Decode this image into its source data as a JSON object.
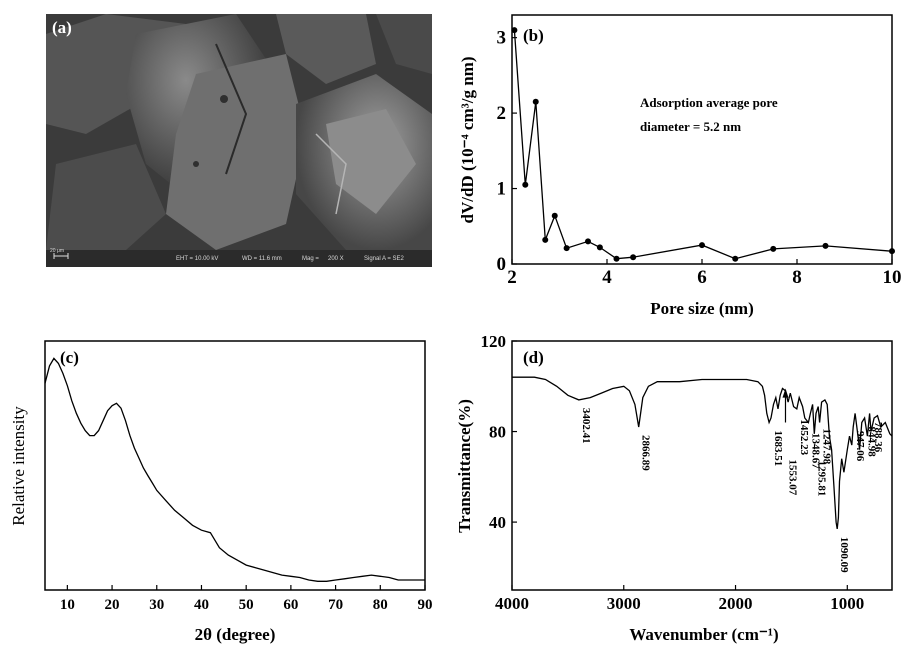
{
  "sem_image": {
    "panel_label": "(a)",
    "scale_bar_label": "20 μm",
    "footer": [
      "EHT = 10.00 kV",
      "WD = 11.6 mm",
      "Mag =",
      "200 X",
      "Signal A = SE2"
    ]
  },
  "chart_data": [
    {
      "panel_label": "(b)",
      "type": "line",
      "xlabel": "Pore size (nm)",
      "ylabel": "dV/dD (10⁻⁴ cm³/g nm)",
      "xlim": [
        2,
        10
      ],
      "ylim": [
        0,
        3.3
      ],
      "xticks": [
        "2",
        "4",
        "6",
        "8",
        "10"
      ],
      "yticks": [
        "0",
        "1",
        "2",
        "3"
      ],
      "annotation": [
        "Adsorption average pore",
        "diameter = 5.2 nm"
      ],
      "grid": false,
      "series": [
        {
          "x": [
            2.05,
            2.28,
            2.5,
            2.7,
            2.9,
            3.15,
            3.6,
            3.85,
            4.2,
            4.55,
            6.0,
            6.7,
            7.5,
            8.6,
            10.0
          ],
          "y": [
            3.1,
            1.05,
            2.15,
            0.32,
            0.64,
            0.21,
            0.3,
            0.22,
            0.07,
            0.09,
            0.25,
            0.07,
            0.2,
            0.24,
            0.17
          ]
        }
      ]
    },
    {
      "panel_label": "(c)",
      "type": "line",
      "xlabel": "2θ (degree)",
      "ylabel": "Relative intensity",
      "xlim": [
        5,
        90
      ],
      "ylim": [
        0,
        1
      ],
      "xticks": [
        "10",
        "20",
        "30",
        "40",
        "50",
        "60",
        "70",
        "80",
        "90"
      ],
      "yticks": [],
      "grid": false,
      "series": [
        {
          "x": [
            5,
            6,
            7,
            8,
            9,
            10,
            11,
            12,
            13,
            14,
            15,
            16,
            17,
            18,
            19,
            20,
            21,
            22,
            23,
            24,
            25,
            26,
            27,
            28,
            29,
            30,
            32,
            34,
            36,
            38,
            40,
            42,
            43,
            44,
            46,
            48,
            50,
            52,
            54,
            56,
            58,
            60,
            62,
            64,
            66,
            68,
            70,
            72,
            74,
            76,
            78,
            80,
            82,
            84,
            86,
            88,
            90
          ],
          "y": [
            0.83,
            0.9,
            0.93,
            0.91,
            0.87,
            0.82,
            0.76,
            0.71,
            0.67,
            0.64,
            0.62,
            0.62,
            0.64,
            0.68,
            0.72,
            0.74,
            0.75,
            0.73,
            0.68,
            0.62,
            0.57,
            0.53,
            0.49,
            0.46,
            0.43,
            0.4,
            0.36,
            0.32,
            0.29,
            0.26,
            0.24,
            0.23,
            0.2,
            0.17,
            0.14,
            0.12,
            0.1,
            0.09,
            0.08,
            0.07,
            0.06,
            0.055,
            0.05,
            0.04,
            0.035,
            0.035,
            0.04,
            0.045,
            0.05,
            0.055,
            0.06,
            0.055,
            0.05,
            0.04,
            0.04,
            0.04,
            0.04
          ]
        }
      ]
    },
    {
      "panel_label": "(d)",
      "type": "line",
      "xlabel": "Wavenumber (cm⁻¹)",
      "ylabel": "Transmittance(%)",
      "xlim": [
        4000,
        600
      ],
      "ylim": [
        10,
        120
      ],
      "xticks": [
        "4000",
        "3000",
        "2000",
        "1000"
      ],
      "yticks": [
        "40",
        "80",
        "120"
      ],
      "grid": false,
      "peak_labels": [
        "3402.41",
        "2866.89",
        "1683.51",
        "1553.07",
        "1452.23",
        "1348.67",
        "1295.81",
        "1247.98",
        "1090.09",
        "947.06",
        "844.98",
        "788.36"
      ],
      "series": [
        {
          "x": [
            4000,
            3800,
            3700,
            3600,
            3500,
            3402,
            3300,
            3200,
            3100,
            3000,
            2950,
            2900,
            2866,
            2830,
            2780,
            2700,
            2500,
            2300,
            2100,
            1900,
            1800,
            1760,
            1740,
            1720,
            1700,
            1683,
            1660,
            1640,
            1620,
            1600,
            1580,
            1553,
            1530,
            1510,
            1480,
            1452,
            1430,
            1400,
            1380,
            1348,
            1330,
            1310,
            1295,
            1280,
            1260,
            1248,
            1230,
            1200,
            1180,
            1160,
            1140,
            1120,
            1100,
            1090,
            1080,
            1070,
            1050,
            1030,
            1000,
            980,
            960,
            947,
            930,
            910,
            890,
            870,
            845,
            820,
            800,
            788,
            760,
            730,
            700,
            660,
            620,
            600
          ],
          "y": [
            104,
            104,
            103,
            100,
            96,
            94,
            95,
            97,
            99,
            100,
            98,
            92,
            82,
            95,
            100,
            102,
            102,
            103,
            103,
            103,
            102,
            100,
            96,
            88,
            84,
            86,
            92,
            95,
            90,
            96,
            99,
            98,
            93,
            97,
            91,
            90,
            95,
            91,
            86,
            84,
            88,
            92,
            79,
            88,
            91,
            84,
            93,
            94,
            92,
            78,
            72,
            56,
            40,
            37,
            42,
            58,
            68,
            62,
            72,
            78,
            74,
            82,
            88,
            80,
            72,
            84,
            86,
            78,
            88,
            80,
            86,
            87,
            82,
            84,
            79,
            78
          ]
        }
      ]
    }
  ]
}
